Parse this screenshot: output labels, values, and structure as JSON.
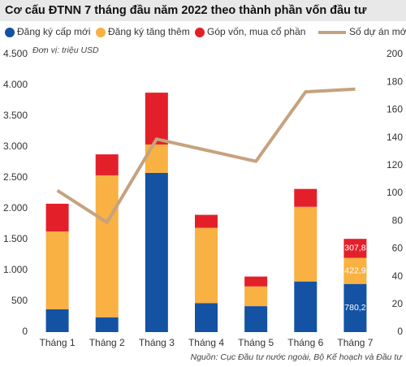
{
  "chart_data": {
    "type": "bar",
    "stacked": true,
    "title": "Cơ cấu ĐTNN 7 tháng đầu năm 2022 theo thành phần vốn đầu tư",
    "subtitle": "Đơn vị: triệu USD",
    "source": "Nguồn: Cục Đầu tư nước ngoài, Bộ Kế hoạch và Đầu tư",
    "categories": [
      "Tháng 1",
      "Tháng 2",
      "Tháng 3",
      "Tháng 4",
      "Tháng 5",
      "Tháng 6",
      "Tháng 7"
    ],
    "series": [
      {
        "name": "Đăng ký cấp mới",
        "color": "#1452a3",
        "values": [
          370,
          240,
          2580,
          470,
          420,
          820,
          780.2
        ],
        "value_labels": [
          null,
          null,
          null,
          null,
          null,
          null,
          "780,2"
        ]
      },
      {
        "name": "Đăng ký tăng thêm",
        "color": "#f8b142",
        "values": [
          1260,
          2300,
          460,
          1220,
          320,
          1210,
          422.9
        ],
        "value_labels": [
          null,
          null,
          null,
          null,
          null,
          null,
          "422,9"
        ]
      },
      {
        "name": "Góp vốn, mua cổ phần",
        "color": "#e3202a",
        "values": [
          450,
          340,
          840,
          210,
          160,
          290,
          307.8
        ],
        "value_labels": [
          null,
          null,
          null,
          null,
          null,
          null,
          "307,8"
        ]
      },
      {
        "name": "Số dự án mới",
        "color": "#c6a27f",
        "type": "line",
        "axis": "y2",
        "values": [
          102,
          79,
          139,
          131,
          123,
          173,
          175
        ]
      }
    ],
    "ylim": [
      0,
      4500
    ],
    "yticks": [
      0,
      500,
      {
        "value": 1000,
        "label": "1.000"
      },
      {
        "value": 1500,
        "label": "1.500"
      },
      {
        "value": 2000,
        "label": "2.000"
      },
      {
        "value": 2500,
        "label": "2.500"
      },
      {
        "value": 3000,
        "label": "3.000"
      },
      {
        "value": 3500,
        "label": "3.500"
      },
      {
        "value": 4000,
        "label": "4.000"
      },
      {
        "value": 4500,
        "label": "4.500"
      }
    ],
    "y2lim": [
      0,
      200
    ],
    "y2ticks": [
      0,
      20,
      40,
      60,
      80,
      100,
      120,
      140,
      160,
      180,
      200
    ],
    "grid": false
  }
}
